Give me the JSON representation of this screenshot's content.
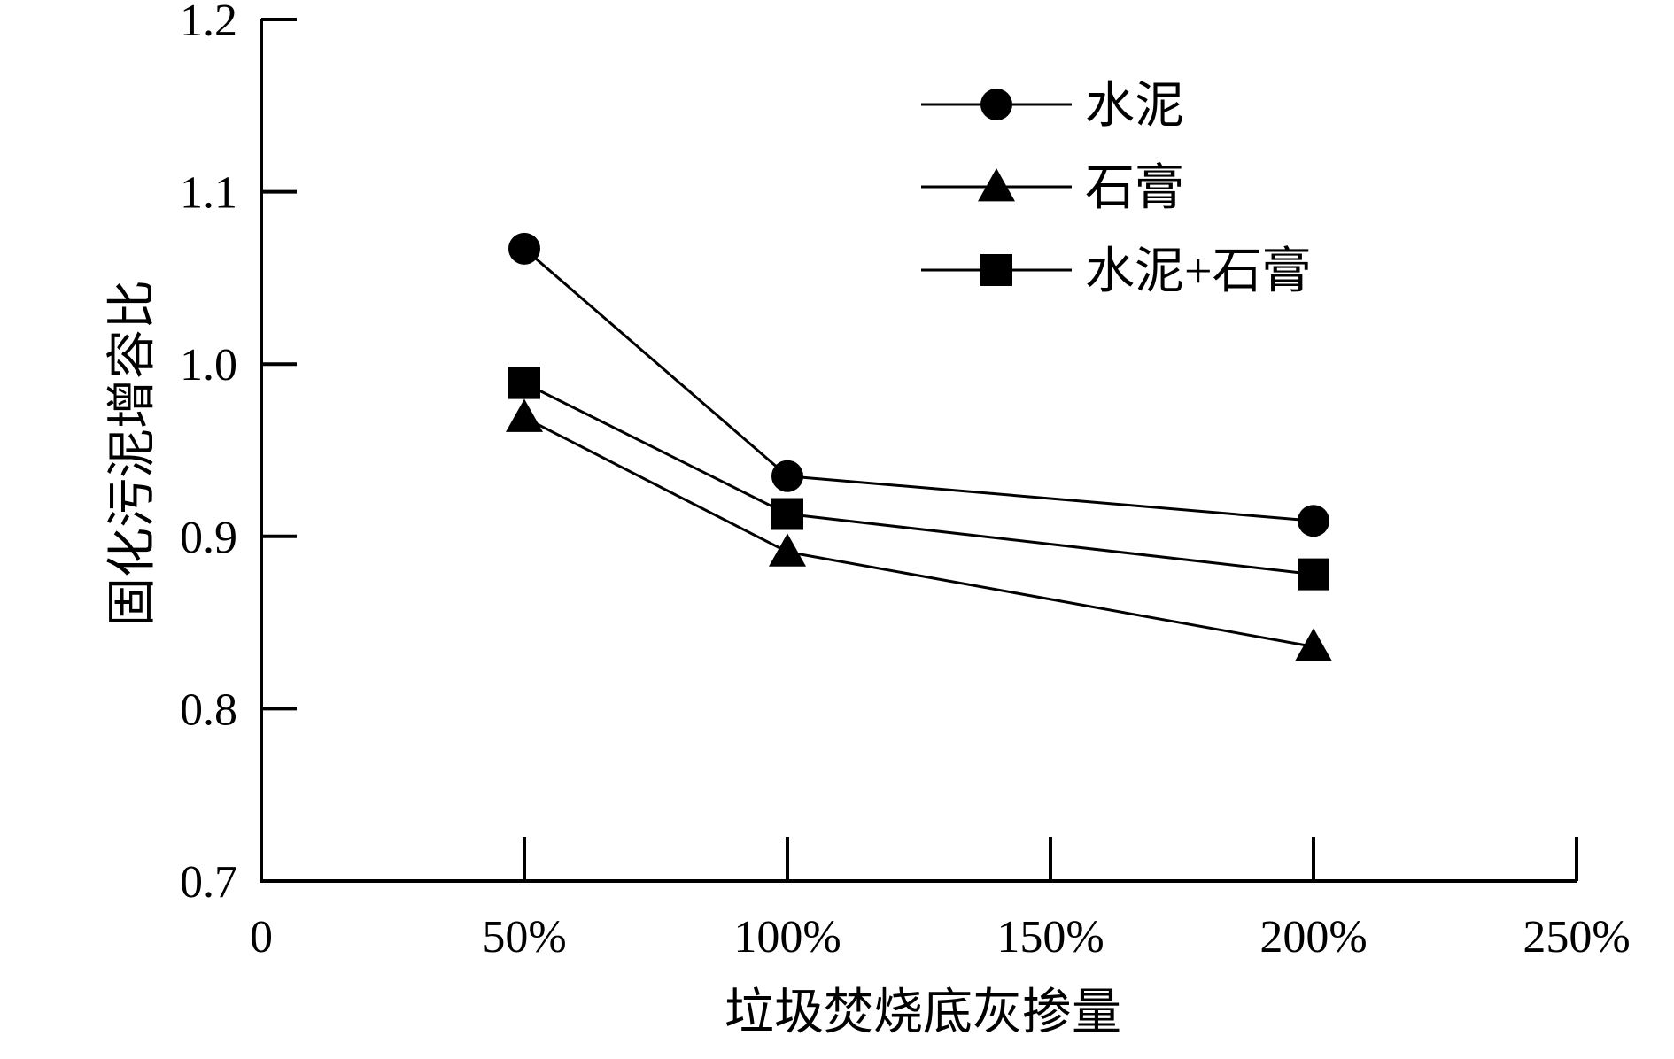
{
  "chart_data": {
    "type": "line",
    "title": "",
    "xlabel": "垃圾焚烧底灰掺量",
    "ylabel": "固化污泥增容比",
    "x_ticks": [
      {
        "value": 0,
        "label": "0"
      },
      {
        "value": 50,
        "label": "50%"
      },
      {
        "value": 100,
        "label": "100%"
      },
      {
        "value": 150,
        "label": "150%"
      },
      {
        "value": 200,
        "label": "200%"
      },
      {
        "value": 250,
        "label": "250%"
      }
    ],
    "y_ticks": [
      {
        "value": 0.7,
        "label": "0.7"
      },
      {
        "value": 0.8,
        "label": "0.8"
      },
      {
        "value": 0.9,
        "label": "0.9"
      },
      {
        "value": 1.0,
        "label": "1.0"
      },
      {
        "value": 1.1,
        "label": "1.1"
      },
      {
        "value": 1.2,
        "label": "1.2"
      }
    ],
    "xlim": [
      0,
      250
    ],
    "ylim": [
      0.7,
      1.2
    ],
    "grid": false,
    "legend_position": "top-right",
    "x": [
      50,
      100,
      200
    ],
    "series": [
      {
        "name": "水泥",
        "marker": "circle",
        "color": "#000000",
        "values": [
          1.067,
          0.935,
          0.909
        ]
      },
      {
        "name": "石膏",
        "marker": "triangle",
        "color": "#000000",
        "values": [
          0.969,
          0.891,
          0.836
        ]
      },
      {
        "name": "水泥+石膏",
        "marker": "square",
        "color": "#000000",
        "values": [
          0.989,
          0.913,
          0.878
        ]
      }
    ]
  }
}
